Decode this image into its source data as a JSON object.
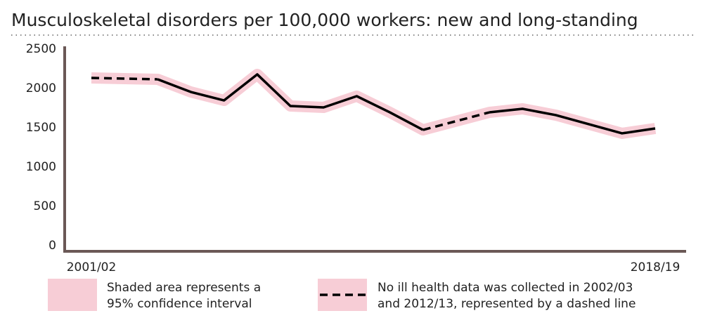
{
  "chart_data": {
    "type": "line",
    "title": "Musculoskeletal disorders per 100,000 workers: new and long-standing",
    "categories": [
      "2001/02",
      null,
      null,
      null,
      null,
      null,
      null,
      null,
      null,
      null,
      null,
      null,
      null,
      null,
      null,
      null,
      null,
      "2018/19"
    ],
    "series": [
      {
        "name": "Musculoskeletal disorders per 100,000 workers",
        "color": "#000000",
        "values": [
          2134,
          null,
          2116,
          1955,
          1848,
          2179,
          1777,
          1759,
          1902,
          1696,
          1473,
          null,
          1696,
          1741,
          1661,
          1545,
          1429,
          1491
        ]
      }
    ],
    "band_color": "#f7cdd6",
    "ylim": [
      0,
      2500
    ],
    "yticks": [
      0,
      500,
      1000,
      1500,
      2000,
      2500
    ],
    "grid": false,
    "legend": [
      {
        "lines": [
          "Shaded area represents a",
          "95% confidence interval"
        ]
      },
      {
        "lines": [
          "No ill health data was collected in 2002/03",
          "and 2012/13, represented by a dashed line"
        ]
      }
    ]
  }
}
